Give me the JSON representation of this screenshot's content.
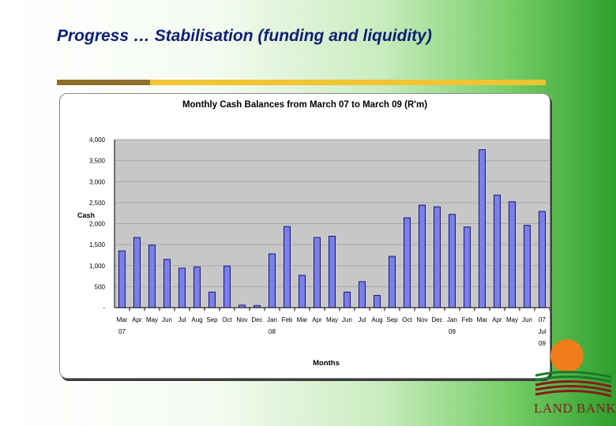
{
  "slide": {
    "title": "Progress … Stabilisation (funding and liquidity)",
    "brand": "LAND BANK"
  },
  "colors": {
    "title": "#0d1f73",
    "bar_fill": "#7b7fe8",
    "bar_stroke": "#15157a",
    "plot_background": "#c7c7c7",
    "rule_dark": "#8d6f2a",
    "rule_gold": "#f0c433",
    "logo_sun": "#ef7d1a",
    "logo_text": "#8b1a1a"
  },
  "chart_data": {
    "type": "bar",
    "title": "Monthly Cash Balances from March 07 to March 09   (R'm)",
    "xlabel": "Months",
    "ylabel": "Cash",
    "ylim": [
      0,
      4000
    ],
    "yticks": [
      0,
      500,
      1000,
      1500,
      2000,
      2500,
      3000,
      3500,
      4000
    ],
    "ytick_labels": [
      "-",
      "500",
      "1,000",
      "1,500",
      "2,000",
      "2,500",
      "3,000",
      "3,500",
      "4,000"
    ],
    "grid": true,
    "legend": "none",
    "categories": [
      [
        "Mar",
        "07"
      ],
      [
        "Apr"
      ],
      [
        "May"
      ],
      [
        "Jun"
      ],
      [
        "Jul"
      ],
      [
        "Aug"
      ],
      [
        "Sep"
      ],
      [
        "Oct"
      ],
      [
        "Nov"
      ],
      [
        "Dec"
      ],
      [
        "Jan",
        "08"
      ],
      [
        "Feb"
      ],
      [
        "Mar"
      ],
      [
        "Apr"
      ],
      [
        "May"
      ],
      [
        "Jun"
      ],
      [
        "Jul"
      ],
      [
        "Aug"
      ],
      [
        "Sep"
      ],
      [
        "Oct"
      ],
      [
        "Nov"
      ],
      [
        "Dec"
      ],
      [
        "Jan",
        "09"
      ],
      [
        "Feb"
      ],
      [
        "Mar"
      ],
      [
        "Apr"
      ],
      [
        "May"
      ],
      [
        "Jun"
      ],
      [
        "07",
        "Jul",
        "09"
      ]
    ],
    "values": [
      1350,
      1670,
      1490,
      1150,
      940,
      970,
      370,
      990,
      60,
      50,
      1280,
      1930,
      770,
      1670,
      1700,
      370,
      620,
      290,
      1220,
      2140,
      2440,
      2400,
      2220,
      1920,
      3760,
      2680,
      2520,
      1960,
      2290
    ]
  }
}
